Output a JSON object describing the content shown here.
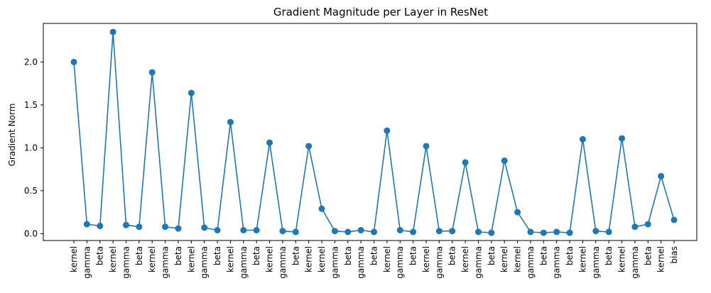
{
  "chart_data": {
    "type": "line",
    "title": "Gradient Magnitude per Layer in ResNet",
    "xlabel": "",
    "ylabel": "Gradient Norm",
    "ylim": [
      -0.08,
      2.45
    ],
    "yticks": [
      "0.0",
      "0.5",
      "1.0",
      "1.5",
      "2.0"
    ],
    "grid": false,
    "marker": "circle",
    "color": "#1f77b4",
    "categories": [
      "kernel",
      "gamma",
      "beta",
      "kernel",
      "gamma",
      "beta",
      "kernel",
      "gamma",
      "beta",
      "kernel",
      "gamma",
      "beta",
      "kernel",
      "gamma",
      "beta",
      "kernel",
      "gamma",
      "beta",
      "kernel",
      "kernel",
      "gamma",
      "beta",
      "gamma",
      "beta",
      "kernel",
      "gamma",
      "beta",
      "kernel",
      "gamma",
      "beta",
      "kernel",
      "gamma",
      "beta",
      "kernel",
      "kernel",
      "gamma",
      "beta",
      "gamma",
      "beta",
      "kernel",
      "gamma",
      "beta",
      "kernel",
      "gamma",
      "beta",
      "kernel",
      "bias"
    ],
    "values": [
      2.0,
      0.11,
      0.09,
      2.35,
      0.1,
      0.08,
      1.88,
      0.08,
      0.06,
      1.64,
      0.07,
      0.04,
      1.3,
      0.04,
      0.04,
      1.06,
      0.03,
      0.02,
      1.02,
      0.29,
      0.03,
      0.02,
      0.04,
      0.02,
      1.2,
      0.04,
      0.02,
      1.02,
      0.03,
      0.03,
      0.83,
      0.02,
      0.01,
      0.85,
      0.25,
      0.02,
      0.01,
      0.02,
      0.01,
      1.1,
      0.03,
      0.02,
      1.11,
      0.08,
      0.11,
      0.67,
      0.16
    ]
  }
}
